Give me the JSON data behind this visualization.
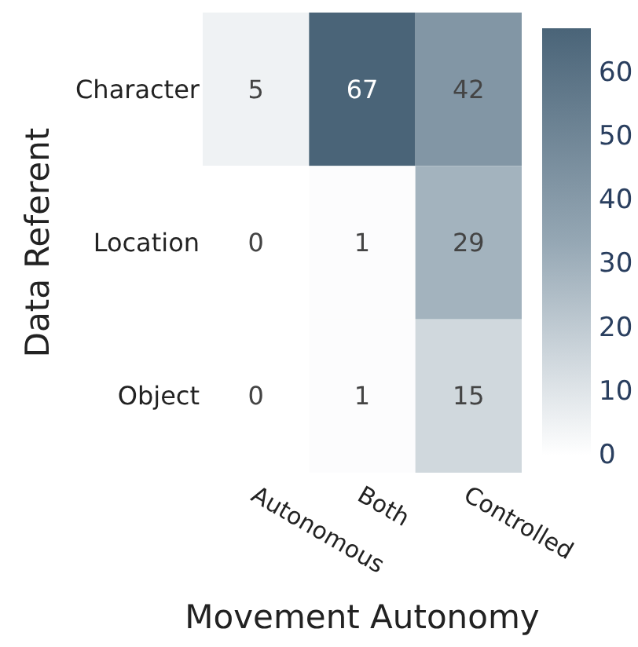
{
  "chart_data": {
    "type": "heatmap",
    "xlabel": "Movement Autonomy",
    "ylabel": "Data Referent",
    "categories": [
      "Autonomous",
      "Both",
      "Controlled"
    ],
    "y_categories": [
      "Character",
      "Location",
      "Object"
    ],
    "cells": [
      [
        5,
        67,
        42
      ],
      [
        0,
        1,
        29
      ],
      [
        0,
        1,
        15
      ]
    ],
    "data_labels": true,
    "clim": [
      0,
      67
    ],
    "cticks": [
      0,
      10,
      20,
      30,
      40,
      50,
      60
    ],
    "colors": [
      "#ffffff",
      "#95a7b4",
      "#4a6478"
    ]
  }
}
